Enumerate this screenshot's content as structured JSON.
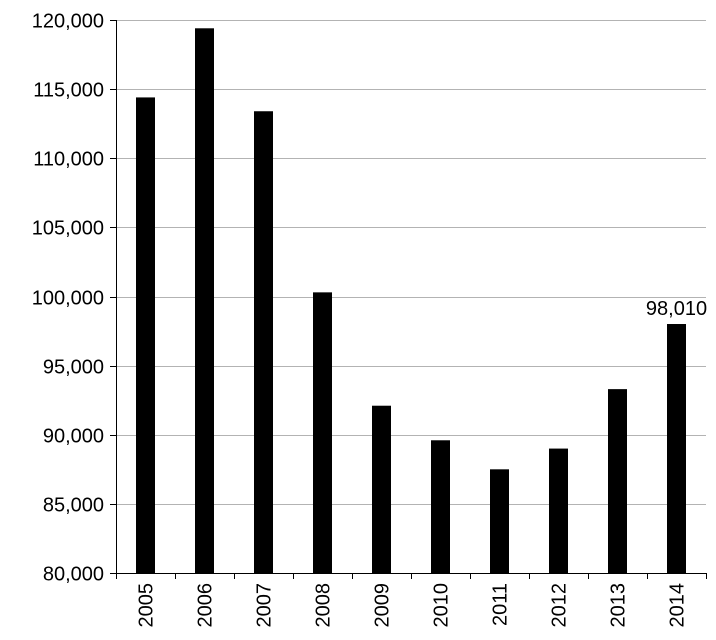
{
  "chart_data": {
    "type": "bar",
    "title": "",
    "xlabel": "",
    "ylabel": "",
    "categories": [
      "2005",
      "2006",
      "2007",
      "2008",
      "2009",
      "2010",
      "2011",
      "2012",
      "2013",
      "2014"
    ],
    "values": [
      114400,
      119400,
      113400,
      100300,
      92100,
      89600,
      87500,
      89000,
      93300,
      98010
    ],
    "data_labels": [
      {
        "category": "2014",
        "text": "98,010"
      }
    ],
    "ylim": [
      80000,
      120000
    ],
    "y_ticks": [
      80000,
      85000,
      90000,
      95000,
      100000,
      105000,
      110000,
      115000,
      120000
    ],
    "y_tick_labels": [
      "80,000",
      "85,000",
      "90,000",
      "95,000",
      "100,000",
      "105,000",
      "110,000",
      "115,000",
      "120,000"
    ],
    "x_tick_orientation": "vertical",
    "grid": true,
    "legend": "none",
    "colors": {
      "bar": "#000000",
      "grid": "#b3b3b3",
      "axis": "#000000"
    }
  }
}
